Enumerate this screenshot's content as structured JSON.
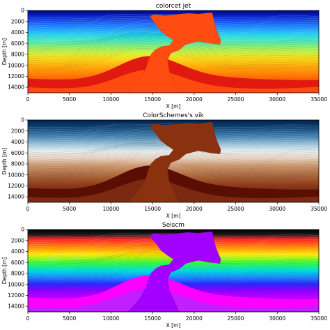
{
  "chart_data": [
    {
      "type": "heatmap",
      "title": "colorcet jet",
      "colormap": "jet",
      "xlabel": "X [m]",
      "ylabel": "Depth [m]",
      "xlim": [
        0,
        35000
      ],
      "ylim": [
        15000,
        0
      ],
      "xticks": [
        0,
        5000,
        10000,
        15000,
        20000,
        25000,
        30000,
        35000
      ],
      "yticks": [
        0,
        2000,
        4000,
        6000,
        8000,
        10000,
        12000,
        14000
      ]
    },
    {
      "type": "heatmap",
      "title": "ColorSchemes's vik",
      "colormap": "vik",
      "xlabel": "X [m]",
      "ylabel": "Depth [m]",
      "xlim": [
        0,
        35000
      ],
      "ylim": [
        15000,
        0
      ],
      "xticks": [
        0,
        5000,
        10000,
        15000,
        20000,
        25000,
        30000,
        35000
      ],
      "yticks": [
        0,
        2000,
        4000,
        6000,
        8000,
        10000,
        12000,
        14000
      ]
    },
    {
      "type": "heatmap",
      "title": "Seiscm",
      "colormap": "seiscm",
      "xlabel": "X [m]",
      "ylabel": "Depth [m]",
      "xlim": [
        0,
        35000
      ],
      "ylim": [
        15000,
        0
      ],
      "xticks": [
        0,
        5000,
        10000,
        15000,
        20000,
        25000,
        30000,
        35000
      ],
      "yticks": [
        0,
        2000,
        4000,
        6000,
        8000,
        10000,
        12000,
        14000
      ]
    }
  ]
}
